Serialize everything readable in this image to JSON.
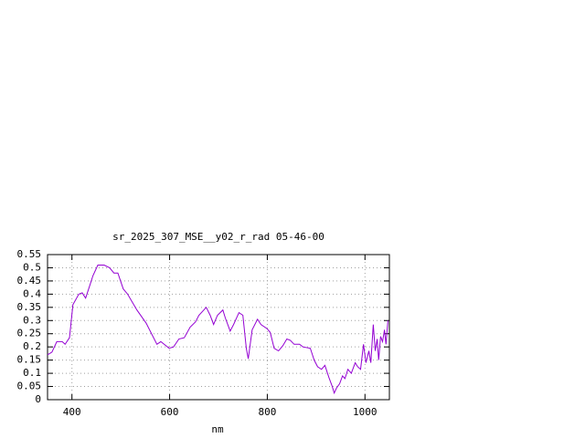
{
  "chart_data": {
    "type": "line",
    "title": "sr_2025_307_MSE__y02_r_rad 05-46-00",
    "xlabel": "nm",
    "color": "#9400d3",
    "grid": true,
    "xlim": [
      350,
      1050
    ],
    "xticks": [
      400,
      600,
      800,
      1000
    ],
    "ylim": [
      0,
      0.55
    ],
    "yticks": [
      0,
      0.05,
      0.1,
      0.15,
      0.2,
      0.25,
      0.3,
      0.35,
      0.4,
      0.45,
      0.5,
      0.55
    ],
    "x": [
      350,
      359,
      369,
      380,
      386,
      395,
      402,
      414,
      421,
      428,
      436,
      443,
      453,
      466,
      477,
      486,
      494,
      505,
      514,
      533,
      552,
      563,
      574,
      582,
      599,
      608,
      619,
      630,
      642,
      653,
      660,
      675,
      683,
      690,
      698,
      709,
      714,
      724,
      731,
      742,
      750,
      757,
      761,
      769,
      780,
      787,
      799,
      806,
      814,
      823,
      832,
      840,
      847,
      855,
      866,
      873,
      888,
      896,
      903,
      911,
      918,
      926,
      933,
      937,
      942,
      948,
      954,
      959,
      965,
      972,
      980,
      985,
      991,
      997,
      1002,
      1008,
      1012,
      1017,
      1021,
      1025,
      1028,
      1032,
      1036,
      1040,
      1043,
      1047
    ],
    "values": [
      0.17,
      0.18,
      0.22,
      0.22,
      0.21,
      0.235,
      0.36,
      0.4,
      0.405,
      0.385,
      0.43,
      0.47,
      0.51,
      0.51,
      0.5,
      0.48,
      0.48,
      0.42,
      0.4,
      0.34,
      0.29,
      0.25,
      0.21,
      0.22,
      0.195,
      0.2,
      0.23,
      0.235,
      0.275,
      0.295,
      0.32,
      0.35,
      0.32,
      0.285,
      0.32,
      0.34,
      0.31,
      0.26,
      0.285,
      0.33,
      0.32,
      0.195,
      0.155,
      0.265,
      0.305,
      0.285,
      0.27,
      0.255,
      0.195,
      0.185,
      0.205,
      0.23,
      0.225,
      0.21,
      0.21,
      0.2,
      0.195,
      0.15,
      0.125,
      0.115,
      0.13,
      0.085,
      0.05,
      0.025,
      0.045,
      0.06,
      0.09,
      0.08,
      0.115,
      0.1,
      0.14,
      0.125,
      0.115,
      0.21,
      0.14,
      0.185,
      0.14,
      0.285,
      0.185,
      0.23,
      0.15,
      0.24,
      0.22,
      0.265,
      0.21,
      0.3
    ]
  }
}
